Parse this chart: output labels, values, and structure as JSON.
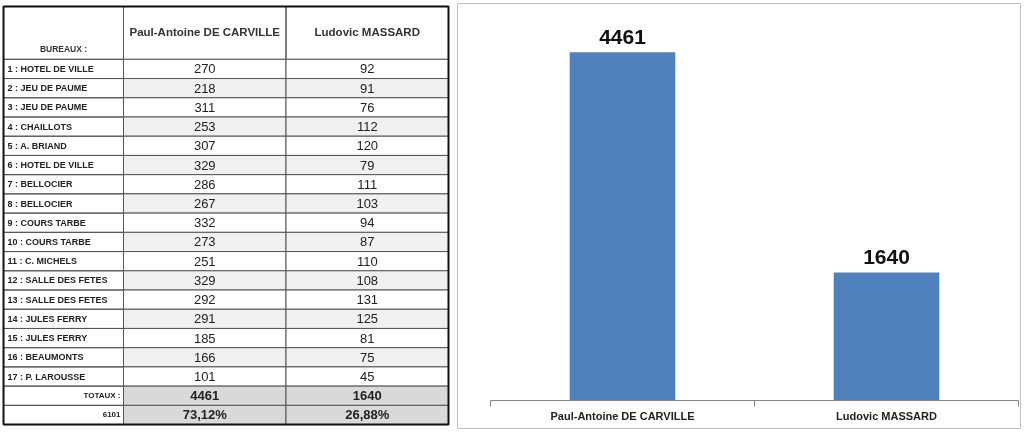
{
  "chart_data": [
    {
      "type": "heatmap",
      "ylabel": "BUREAUX :",
      "categories": [
        "Paul-Antoine DE CARVILLE",
        "Ludovic MASSARD"
      ],
      "y_categories": [
        "1 : HOTEL DE VILLE",
        "2 : JEU DE PAUME",
        "3 : JEU DE PAUME",
        "4 : CHAILLOTS",
        "5 : A. BRIAND",
        "6 : HOTEL DE VILLE",
        "7 : BELLOCIER",
        "8 : BELLOCIER",
        "9 : COURS TARBE",
        "10 : COURS TARBE",
        "11 : C. MICHELS",
        "12 : SALLE DES FETES",
        "13 : SALLE DES FETES",
        "14 : JULES FERRY",
        "15 : JULES FERRY",
        "16 : BEAUMONTS",
        "17 : P. LAROUSSE",
        "TOTAUX :",
        "6101"
      ],
      "cells": [
        [
          270,
          92
        ],
        [
          218,
          91
        ],
        [
          311,
          76
        ],
        [
          253,
          112
        ],
        [
          307,
          120
        ],
        [
          329,
          79
        ],
        [
          286,
          111
        ],
        [
          267,
          103
        ],
        [
          332,
          94
        ],
        [
          273,
          87
        ],
        [
          251,
          110
        ],
        [
          329,
          108
        ],
        [
          292,
          131
        ],
        [
          291,
          125
        ],
        [
          185,
          81
        ],
        [
          166,
          75
        ],
        [
          101,
          45
        ],
        [
          4461,
          1640
        ],
        [
          null,
          null
        ]
      ],
      "annotations": [
        "73,12%",
        "26,88%"
      ],
      "data_labels": true
    },
    {
      "type": "bar",
      "categories": [
        "Paul-Antoine DE CARVILLE",
        "Ludovic MASSARD"
      ],
      "values": [
        4461,
        1640
      ],
      "color": "#4f81bd",
      "data_labels": true
    }
  ]
}
